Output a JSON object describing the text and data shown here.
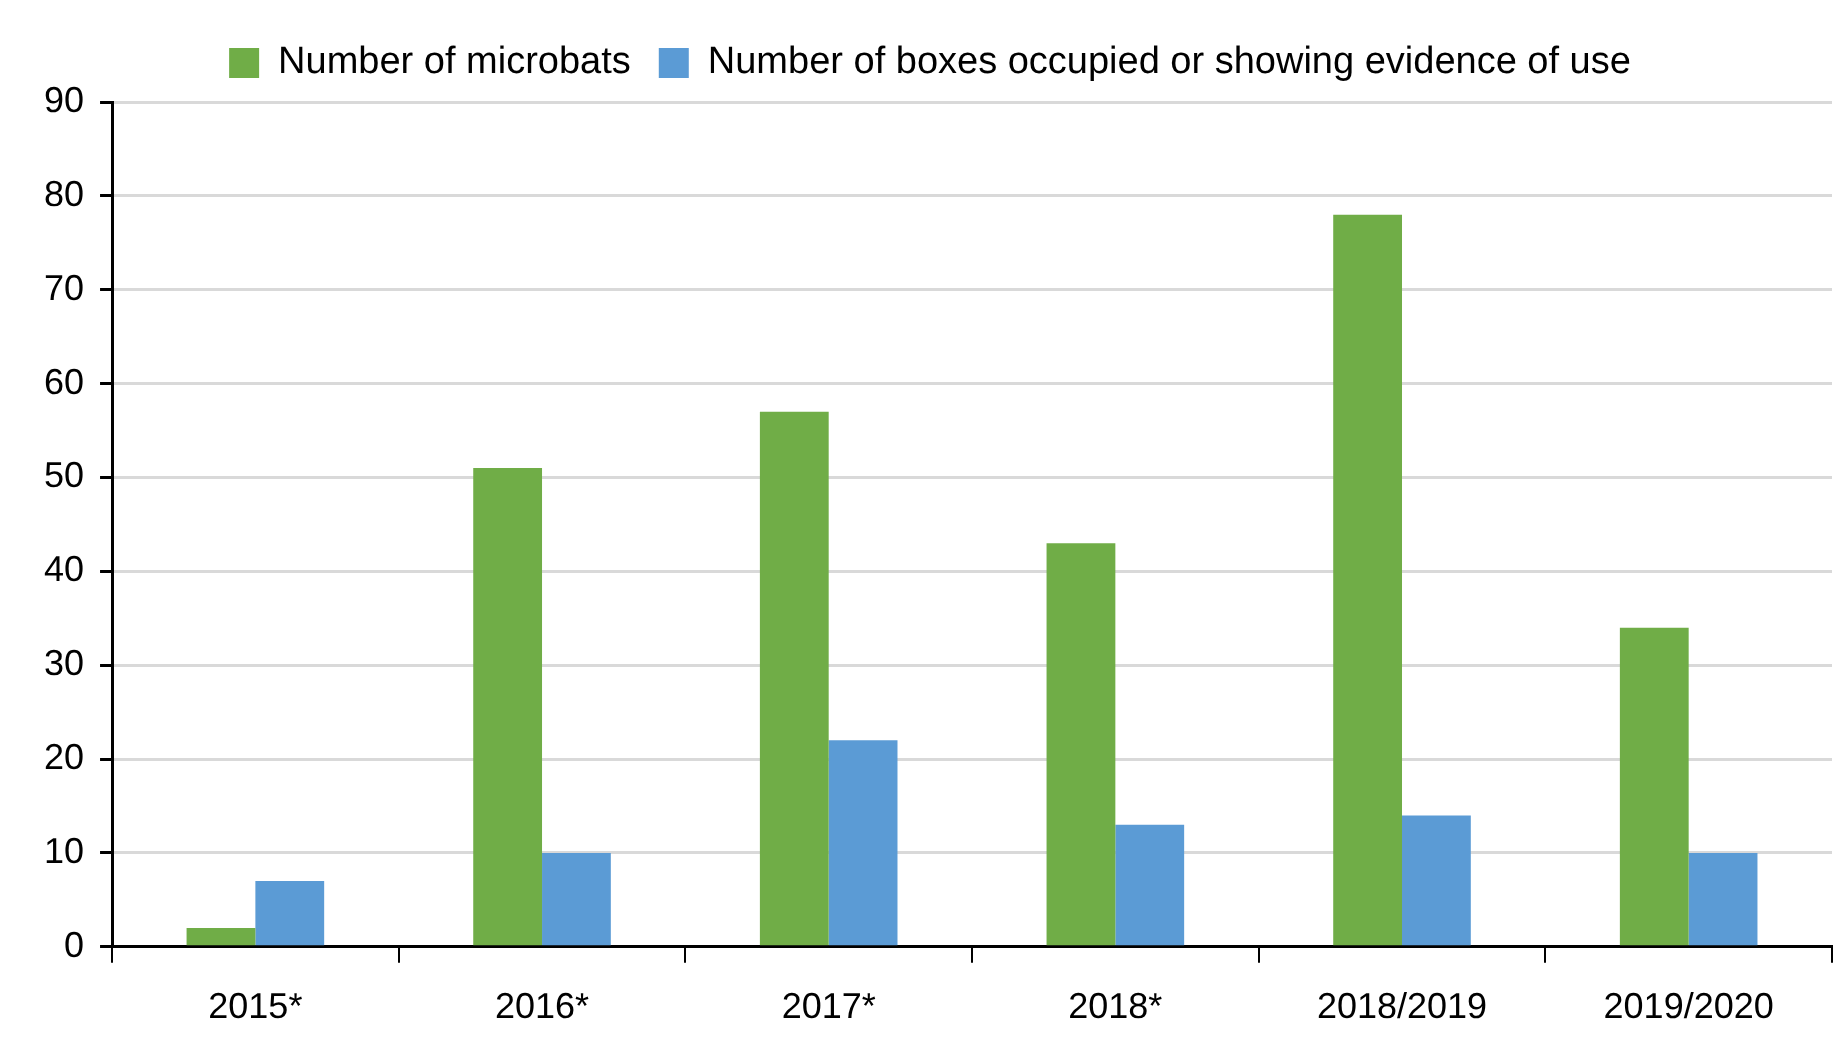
{
  "chart_data": {
    "type": "bar",
    "categories": [
      "2015*",
      "2016*",
      "2017*",
      "2018*",
      "2018/2019",
      "2019/2020"
    ],
    "series": [
      {
        "name": "Number of microbats",
        "color": "#70ad47",
        "values": [
          2,
          51,
          57,
          43,
          78,
          34
        ]
      },
      {
        "name": "Number of boxes occupied or showing evidence of use",
        "color": "#5b9bd5",
        "values": [
          7,
          10,
          22,
          13,
          14,
          10
        ]
      }
    ],
    "ylim": [
      0,
      90
    ],
    "yticks": [
      0,
      10,
      20,
      30,
      40,
      50,
      60,
      70,
      80,
      90
    ],
    "grid": "y",
    "legend": "top"
  }
}
